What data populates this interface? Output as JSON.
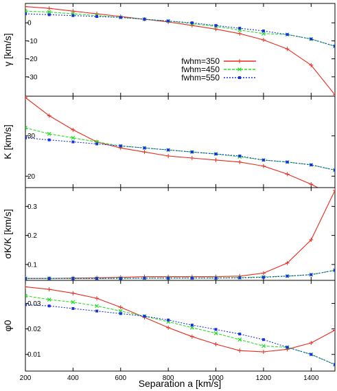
{
  "chart_data": {
    "type": "line",
    "xlabel": "Separation a [km/s]",
    "x": [
      200,
      300,
      400,
      500,
      600,
      700,
      800,
      900,
      1000,
      1100,
      1200,
      1300,
      1400,
      1500
    ],
    "xlim": [
      200,
      1500
    ],
    "xticks": [
      200,
      400,
      600,
      800,
      1000,
      1200,
      1400
    ],
    "xtick_labels": [
      "200",
      "400",
      "600",
      "800",
      "1000",
      "1200",
      "1400"
    ],
    "legend": {
      "placement": "inside first panel, right",
      "entries": [
        "fwhm=350",
        "fwhm=450",
        "fwhm=550"
      ]
    },
    "colors": {
      "fwhm350": "#e8291c",
      "fwhm450": "#22dd22",
      "fwhm550": "#1a2ee6"
    },
    "panels": [
      {
        "ylabel": "γ [km/s]",
        "ylim": [
          -40,
          10
        ],
        "yticks": [
          0,
          -10,
          -20,
          -30
        ],
        "ytick_labels": [
          "0",
          "-10",
          "-20",
          "-30"
        ],
        "series": [
          {
            "name": "fwhm=350",
            "values": [
              9,
              8,
              6.5,
              5,
              3.5,
              2,
              0.5,
              -1.5,
              -3.5,
              -6,
              -9.5,
              -14.5,
              -23.5,
              -40
            ]
          },
          {
            "name": "fwhm=450",
            "values": [
              6.5,
              6,
              5,
              4,
              3,
              2,
              1,
              -0.5,
              -2,
              -4,
              -6,
              -6.5,
              -9,
              -13
            ]
          },
          {
            "name": "fwhm=550",
            "values": [
              5,
              4.5,
              4,
              3.5,
              3,
              2,
              1,
              0,
              -1.5,
              -3,
              -4.5,
              -6.5,
              -9,
              -13
            ]
          }
        ]
      },
      {
        "ylabel": "K [km/s]",
        "ylim": [
          17.5,
          39.5
        ],
        "yticks": [
          20,
          30
        ],
        "ytick_labels": [
          "20",
          "30"
        ],
        "series": [
          {
            "name": "fwhm=350",
            "values": [
              39.5,
              35,
              31.5,
              28.5,
              27,
              26,
              25,
              24.5,
              24,
              23.5,
              22.5,
              20.5,
              18,
              15
            ]
          },
          {
            "name": "fwhm=450",
            "values": [
              32,
              30.5,
              29.5,
              28.5,
              27.5,
              27,
              26.5,
              26,
              25.5,
              24.8,
              24,
              23.5,
              22.8,
              21.5
            ]
          },
          {
            "name": "fwhm=550",
            "values": [
              29.5,
              29,
              28.5,
              28,
              27.5,
              27,
              26.5,
              26,
              25.5,
              25,
              24,
              23.5,
              22.8,
              21.5
            ]
          }
        ]
      },
      {
        "ylabel": "σK/K [km/s]",
        "ylim": [
          0.05,
          0.36
        ],
        "yticks": [
          0.1,
          0.2,
          0.3
        ],
        "ytick_labels": [
          "0.1",
          "0.2",
          "0.3"
        ],
        "series": [
          {
            "name": "fwhm=350",
            "values": [
              0.052,
              0.052,
              0.053,
              0.054,
              0.056,
              0.058,
              0.058,
              0.058,
              0.058,
              0.06,
              0.07,
              0.105,
              0.185,
              0.355
            ]
          },
          {
            "name": "fwhm=450",
            "values": [
              0.052,
              0.052,
              0.052,
              0.052,
              0.053,
              0.053,
              0.054,
              0.054,
              0.054,
              0.055,
              0.057,
              0.06,
              0.065,
              0.08
            ]
          },
          {
            "name": "fwhm=550",
            "values": [
              0.052,
              0.052,
              0.052,
              0.052,
              0.052,
              0.053,
              0.053,
              0.053,
              0.053,
              0.054,
              0.056,
              0.06,
              0.065,
              0.08
            ]
          }
        ]
      },
      {
        "ylabel": "φ0",
        "ylim": [
          0.004,
          0.0385
        ],
        "yticks": [
          0.01,
          0.02,
          0.03
        ],
        "ytick_labels": [
          "0.01",
          "0.02",
          "0.03"
        ],
        "series": [
          {
            "name": "fwhm=350",
            "values": [
              0.0365,
              0.0355,
              0.034,
              0.032,
              0.0285,
              0.0245,
              0.0205,
              0.017,
              0.014,
              0.0115,
              0.011,
              0.012,
              0.0145,
              0.0195
            ]
          },
          {
            "name": "fwhm=450",
            "values": [
              0.033,
              0.0315,
              0.0305,
              0.029,
              0.027,
              0.025,
              0.0228,
              0.0205,
              0.0183,
              0.0158,
              0.0133,
              0.0128,
              0.01,
              0.006
            ]
          },
          {
            "name": "fwhm=550",
            "values": [
              0.0295,
              0.029,
              0.028,
              0.027,
              0.026,
              0.025,
              0.0235,
              0.0215,
              0.0198,
              0.018,
              0.0158,
              0.0128,
              0.01,
              0.006
            ]
          }
        ]
      }
    ]
  }
}
